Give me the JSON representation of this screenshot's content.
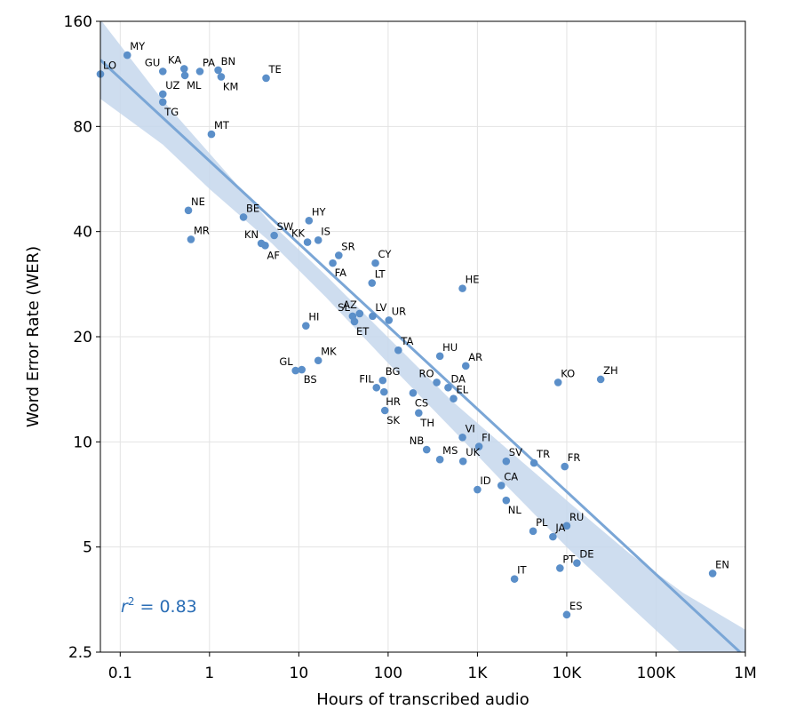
{
  "chart_data": {
    "type": "scatter",
    "xlabel": "Hours of transcribed audio",
    "ylabel": "Word Error Rate (WER)",
    "xscale": "log",
    "yscale": "log",
    "xlim": [
      0.06,
      1000000
    ],
    "ylim": [
      2.5,
      160
    ],
    "x_ticks": [
      0.1,
      1,
      10,
      100,
      1000,
      10000,
      100000,
      1000000
    ],
    "x_tick_labels": [
      "0.1",
      "1",
      "10",
      "100",
      "1K",
      "10K",
      "100K",
      "1M"
    ],
    "y_ticks": [
      2.5,
      5,
      10,
      20,
      40,
      80,
      160
    ],
    "y_tick_labels": [
      "2.5",
      "5",
      "10",
      "20",
      "40",
      "80",
      "160"
    ],
    "grid": true,
    "annotation": {
      "prefix": "r",
      "exponent": "2",
      "suffix": " = 0.83"
    },
    "colors": {
      "point": "#5b8fc9",
      "line": "#7aa6d6",
      "band": "#c5d7ec",
      "annotation": "#2a6db5"
    },
    "fit": {
      "x": [
        0.06,
        1000000
      ],
      "y": [
        124,
        2.42
      ]
    },
    "band": {
      "x": [
        0.06,
        0.3,
        1,
        5,
        20,
        100,
        500,
        2000,
        10000,
        50000,
        200000,
        1000000
      ],
      "upper": [
        162,
        95,
        67,
        42,
        30,
        19.9,
        13.2,
        9.7,
        6.8,
        4.8,
        3.7,
        2.9
      ],
      "lower": [
        96,
        71,
        53,
        37,
        26,
        16.8,
        11.0,
        7.6,
        5.0,
        3.4,
        2.45,
        2.0
      ]
    },
    "points": [
      {
        "label": "LO",
        "x": 0.06,
        "y": 113,
        "pos": "r"
      },
      {
        "label": "MY",
        "x": 0.12,
        "y": 128,
        "pos": "r"
      },
      {
        "label": "GU",
        "x": 0.3,
        "y": 115,
        "pos": "l"
      },
      {
        "label": "KA",
        "x": 0.52,
        "y": 117,
        "pos": "l"
      },
      {
        "label": "ML",
        "x": 0.53,
        "y": 112,
        "pos": "rb"
      },
      {
        "label": "PA",
        "x": 0.78,
        "y": 115,
        "pos": "r"
      },
      {
        "label": "BN",
        "x": 1.25,
        "y": 116,
        "pos": "r"
      },
      {
        "label": "KM",
        "x": 1.35,
        "y": 111,
        "pos": "rb"
      },
      {
        "label": "TE",
        "x": 4.3,
        "y": 110,
        "pos": "r"
      },
      {
        "label": "UZ",
        "x": 0.3,
        "y": 99,
        "pos": "r"
      },
      {
        "label": "TG",
        "x": 0.3,
        "y": 94,
        "pos": "rb"
      },
      {
        "label": "MT",
        "x": 1.05,
        "y": 76,
        "pos": "r"
      },
      {
        "label": "NE",
        "x": 0.58,
        "y": 46,
        "pos": "r"
      },
      {
        "label": "MR",
        "x": 0.62,
        "y": 38,
        "pos": "r"
      },
      {
        "label": "BE",
        "x": 2.4,
        "y": 44,
        "pos": "r"
      },
      {
        "label": "HY",
        "x": 13,
        "y": 43,
        "pos": "r"
      },
      {
        "label": "SW",
        "x": 5.3,
        "y": 39,
        "pos": "r"
      },
      {
        "label": "KN",
        "x": 3.8,
        "y": 37,
        "pos": "l"
      },
      {
        "label": "AF",
        "x": 4.2,
        "y": 36.5,
        "pos": "rb"
      },
      {
        "label": "KK",
        "x": 12.5,
        "y": 37.3,
        "pos": "l"
      },
      {
        "label": "IS",
        "x": 16.5,
        "y": 37.8,
        "pos": "r"
      },
      {
        "label": "SR",
        "x": 28,
        "y": 34.2,
        "pos": "r"
      },
      {
        "label": "FA",
        "x": 24,
        "y": 32.5,
        "pos": "rb"
      },
      {
        "label": "CY",
        "x": 72,
        "y": 32.5,
        "pos": "r"
      },
      {
        "label": "LT",
        "x": 66,
        "y": 28.5,
        "pos": "r"
      },
      {
        "label": "HE",
        "x": 680,
        "y": 27.5,
        "pos": "r"
      },
      {
        "label": "AZ",
        "x": 48,
        "y": 23.3,
        "pos": "l"
      },
      {
        "label": "SL",
        "x": 40,
        "y": 22.9,
        "pos": "l"
      },
      {
        "label": "LV",
        "x": 67,
        "y": 22.9,
        "pos": "r"
      },
      {
        "label": "ET",
        "x": 42,
        "y": 22.1,
        "pos": "rb"
      },
      {
        "label": "UR",
        "x": 102,
        "y": 22.3,
        "pos": "r"
      },
      {
        "label": "HI",
        "x": 12,
        "y": 21.5,
        "pos": "r"
      },
      {
        "label": "TA",
        "x": 130,
        "y": 18.3,
        "pos": "r"
      },
      {
        "label": "HU",
        "x": 380,
        "y": 17.6,
        "pos": "r"
      },
      {
        "label": "AR",
        "x": 740,
        "y": 16.5,
        "pos": "r"
      },
      {
        "label": "MK",
        "x": 16.5,
        "y": 17.1,
        "pos": "r"
      },
      {
        "label": "GL",
        "x": 9.2,
        "y": 16.0,
        "pos": "l"
      },
      {
        "label": "BS",
        "x": 10.8,
        "y": 16.1,
        "pos": "rb"
      },
      {
        "label": "BG",
        "x": 87,
        "y": 15.0,
        "pos": "r"
      },
      {
        "label": "RO",
        "x": 350,
        "y": 14.8,
        "pos": "l"
      },
      {
        "label": "DA",
        "x": 470,
        "y": 14.3,
        "pos": "r"
      },
      {
        "label": "FIL",
        "x": 74,
        "y": 14.3,
        "pos": "l"
      },
      {
        "label": "HR",
        "x": 90,
        "y": 13.9,
        "pos": "rb"
      },
      {
        "label": "CS",
        "x": 190,
        "y": 13.8,
        "pos": "rb"
      },
      {
        "label": "EL",
        "x": 540,
        "y": 13.3,
        "pos": "r"
      },
      {
        "label": "KO",
        "x": 8000,
        "y": 14.8,
        "pos": "r"
      },
      {
        "label": "ZH",
        "x": 24000,
        "y": 15.1,
        "pos": "r"
      },
      {
        "label": "SK",
        "x": 92,
        "y": 12.3,
        "pos": "rb"
      },
      {
        "label": "TH",
        "x": 220,
        "y": 12.1,
        "pos": "rb"
      },
      {
        "label": "VI",
        "x": 680,
        "y": 10.3,
        "pos": "r"
      },
      {
        "label": "FI",
        "x": 1040,
        "y": 9.7,
        "pos": "r"
      },
      {
        "label": "NB",
        "x": 270,
        "y": 9.5,
        "pos": "l"
      },
      {
        "label": "MS",
        "x": 380,
        "y": 8.9,
        "pos": "r"
      },
      {
        "label": "UK",
        "x": 690,
        "y": 8.8,
        "pos": "r"
      },
      {
        "label": "SV",
        "x": 2100,
        "y": 8.8,
        "pos": "r"
      },
      {
        "label": "TR",
        "x": 4300,
        "y": 8.7,
        "pos": "r"
      },
      {
        "label": "FR",
        "x": 9500,
        "y": 8.5,
        "pos": "r"
      },
      {
        "label": "ID",
        "x": 1000,
        "y": 7.3,
        "pos": "r"
      },
      {
        "label": "CA",
        "x": 1850,
        "y": 7.5,
        "pos": "r"
      },
      {
        "label": "NL",
        "x": 2100,
        "y": 6.8,
        "pos": "rb"
      },
      {
        "label": "RU",
        "x": 10000,
        "y": 5.75,
        "pos": "r"
      },
      {
        "label": "PL",
        "x": 4200,
        "y": 5.55,
        "pos": "r"
      },
      {
        "label": "JA",
        "x": 7000,
        "y": 5.35,
        "pos": "r"
      },
      {
        "label": "PT",
        "x": 8400,
        "y": 4.35,
        "pos": "r"
      },
      {
        "label": "DE",
        "x": 13000,
        "y": 4.5,
        "pos": "r"
      },
      {
        "label": "IT",
        "x": 2600,
        "y": 4.05,
        "pos": "r"
      },
      {
        "label": "EN",
        "x": 430000,
        "y": 4.2,
        "pos": "r"
      },
      {
        "label": "ES",
        "x": 10000,
        "y": 3.2,
        "pos": "r"
      }
    ]
  }
}
